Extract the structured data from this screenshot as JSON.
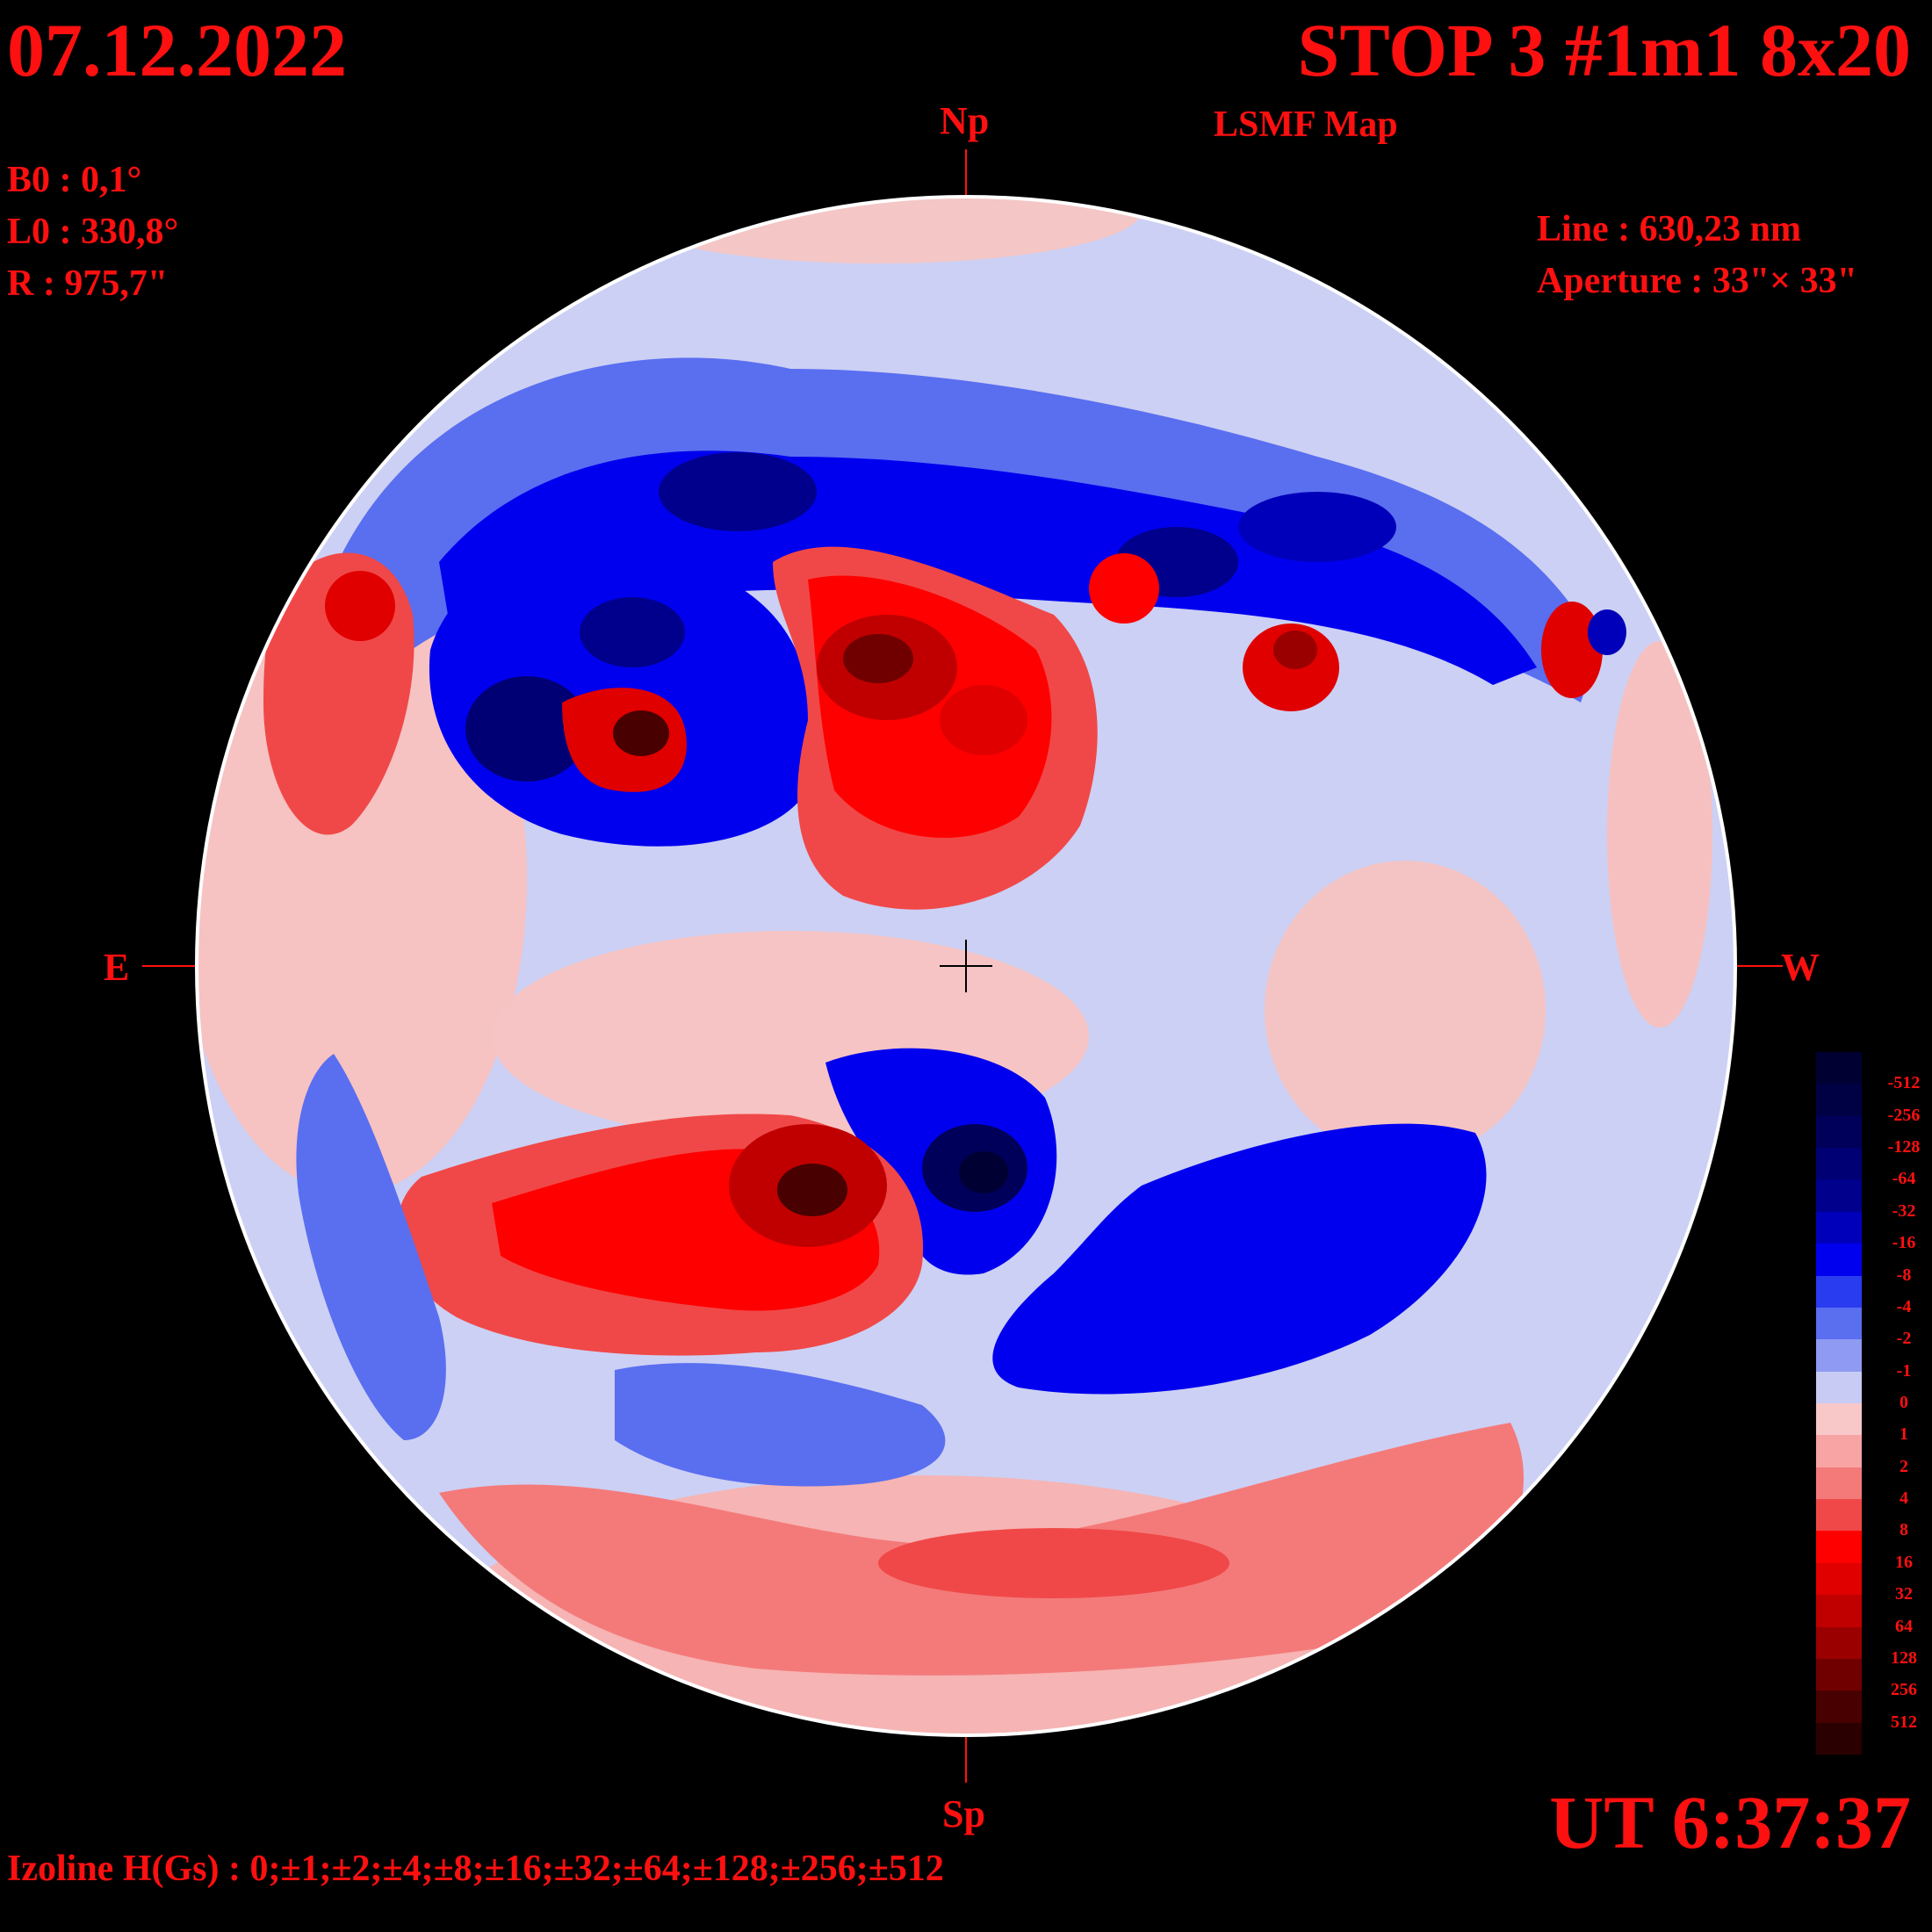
{
  "header": {
    "date": "07.12.2022",
    "title": "STOP 3 #1m1 8x20",
    "subtitle": "LSMF  Map",
    "params": [
      "B0 : 0,1°",
      "L0 : 330,8°",
      "R  : 975,7\""
    ],
    "instrument": [
      "Line :  630,23 nm",
      "Aperture : 33\"× 33\""
    ]
  },
  "directions": {
    "north": "Np",
    "south": "Sp",
    "east": "E",
    "west": "W"
  },
  "footer": {
    "ut": "UT 6:37:37",
    "izoline": "Izoline H(Gs) : 0;±1;±2;±4;±8;±16;±32;±64;±128;±256;±512"
  },
  "scale": {
    "labels": [
      "-512",
      "-256",
      "-128",
      "-64",
      "-32",
      "-16",
      "-8",
      "-4",
      "-2",
      "-1",
      "0",
      "1",
      "2",
      "4",
      "8",
      "16",
      "32",
      "64",
      "128",
      "256",
      "512"
    ],
    "colors": [
      "#000033",
      "#000044",
      "#00005a",
      "#000074",
      "#00008c",
      "#0000bb",
      "#0000ee",
      "#2a3cf0",
      "#5a6ef0",
      "#8f9af2",
      "#c8ccf4",
      "#f8c8c8",
      "#f8a4a4",
      "#f47a7a",
      "#f04848",
      "#ff0000",
      "#e00000",
      "#c00000",
      "#9a0000",
      "#700000",
      "#480000",
      "#2a0000"
    ]
  },
  "palette": {
    "text": "#ff1010",
    "disk_edge": "#ffffff"
  }
}
